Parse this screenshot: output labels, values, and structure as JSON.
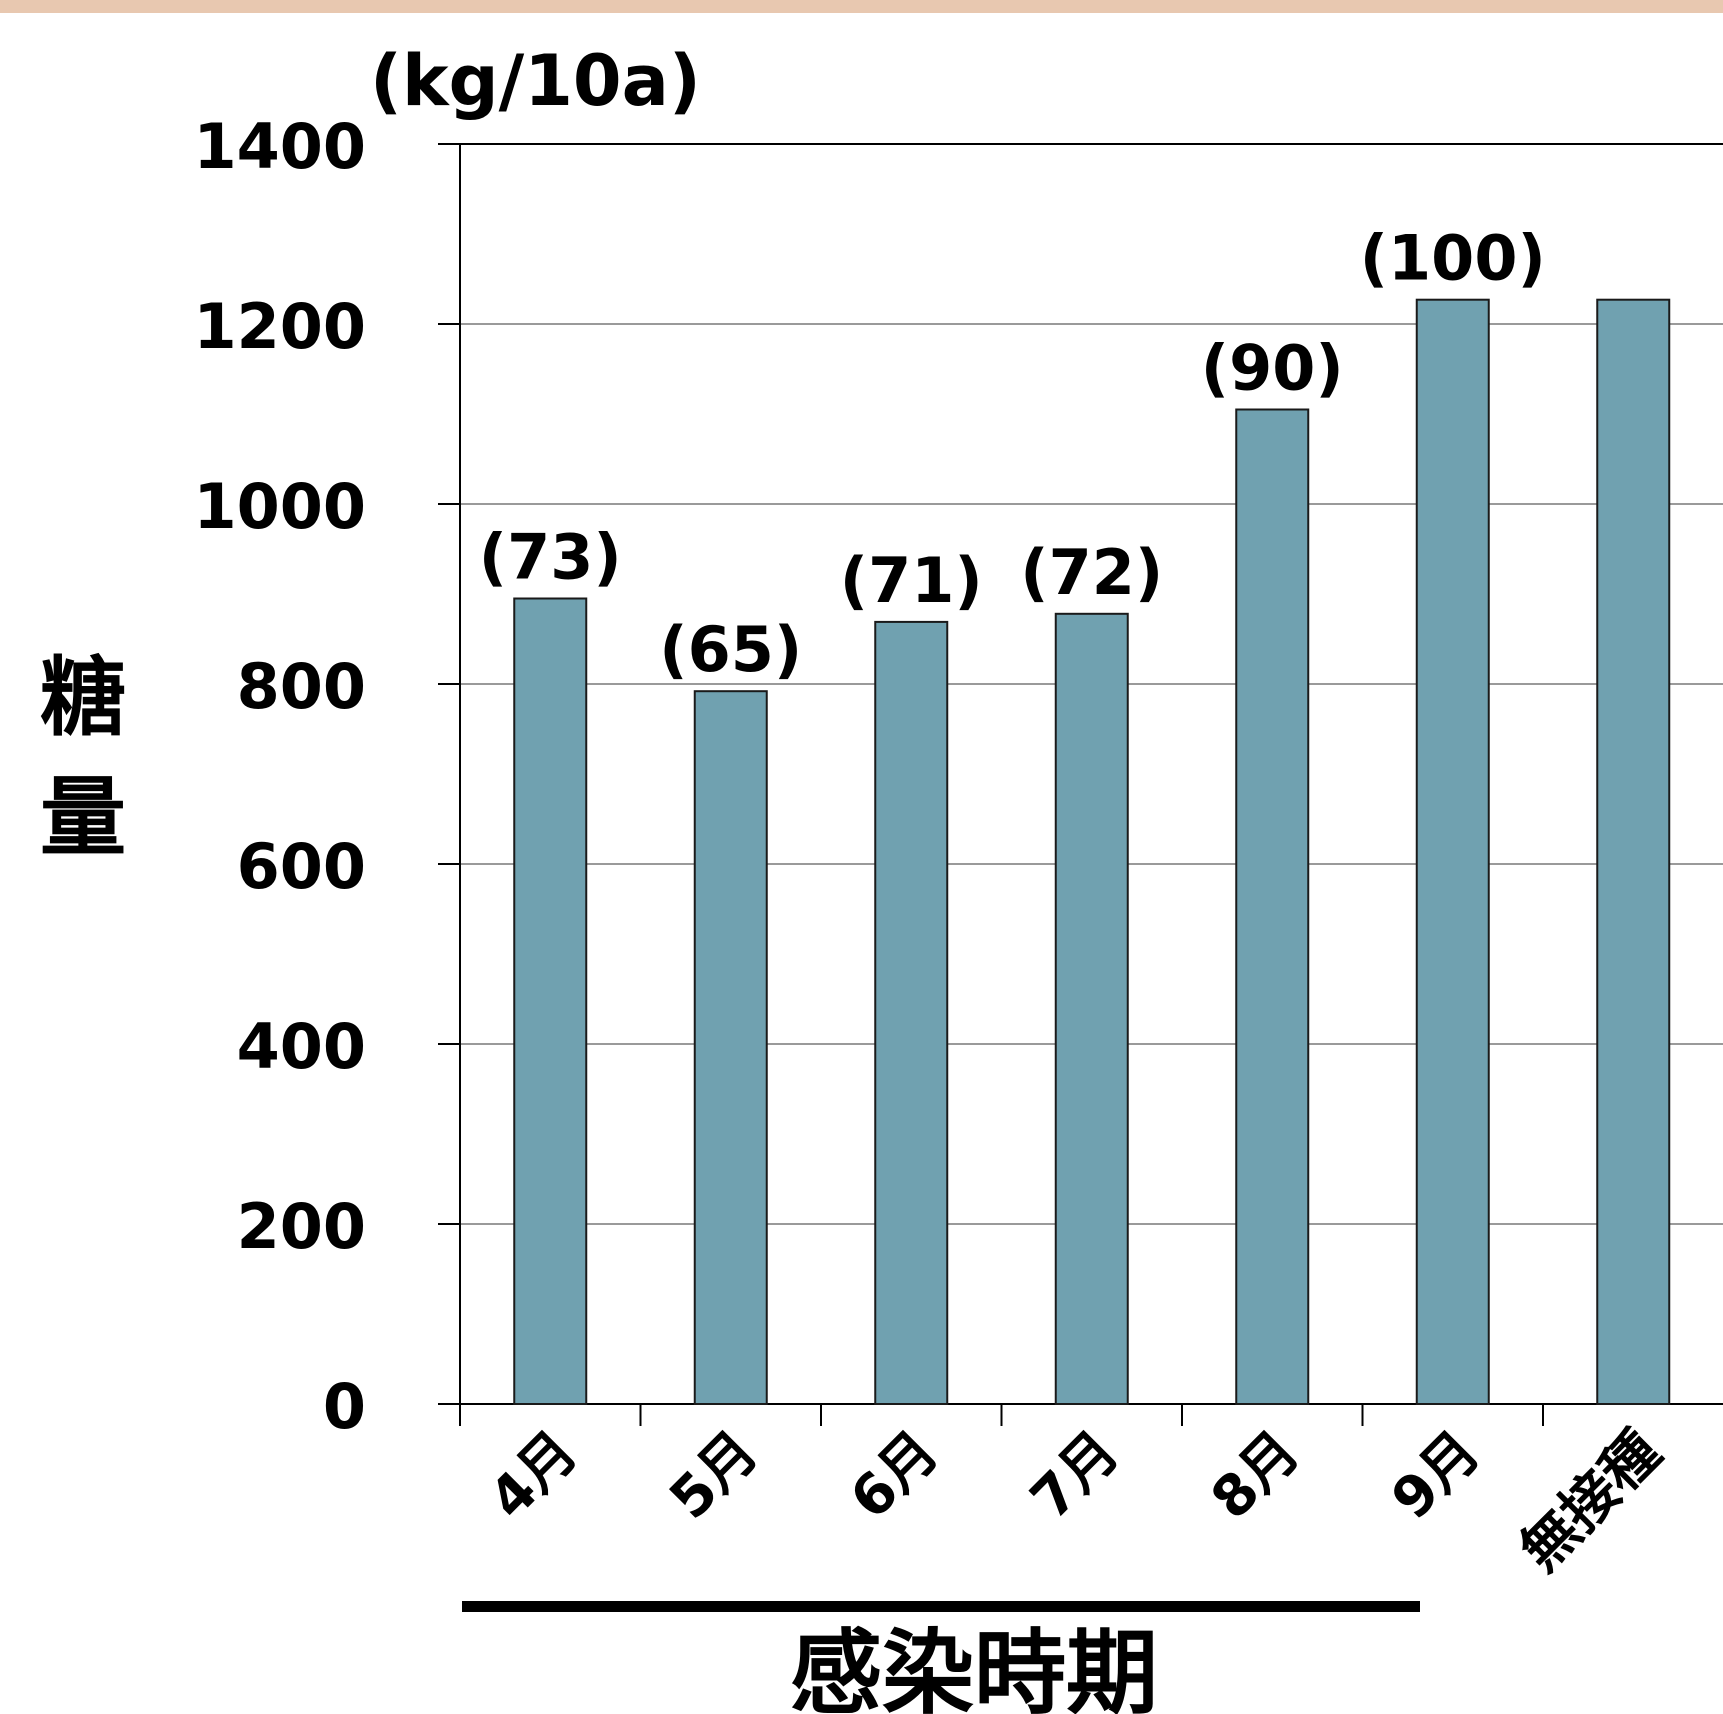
{
  "chart_data": {
    "type": "bar",
    "categories": [
      "4月",
      "5月",
      "6月",
      "7月",
      "8月",
      "9月",
      "無接種"
    ],
    "values": [
      895,
      792,
      869,
      878,
      1105,
      1227,
      1227
    ],
    "data_labels": [
      "(73)",
      "(65)",
      "(71)",
      "(72)",
      "(90)",
      "(100)",
      ""
    ],
    "ylabel": "糖量",
    "yunit": "(kg/10a)",
    "xlabel": "感染時期",
    "ylim": [
      0,
      1400
    ],
    "yticks": [
      0,
      200,
      400,
      600,
      800,
      1000,
      1200,
      1400
    ],
    "grid": true,
    "bar_color": "#70a1b0",
    "top_band_color": "#e8c8b0"
  }
}
